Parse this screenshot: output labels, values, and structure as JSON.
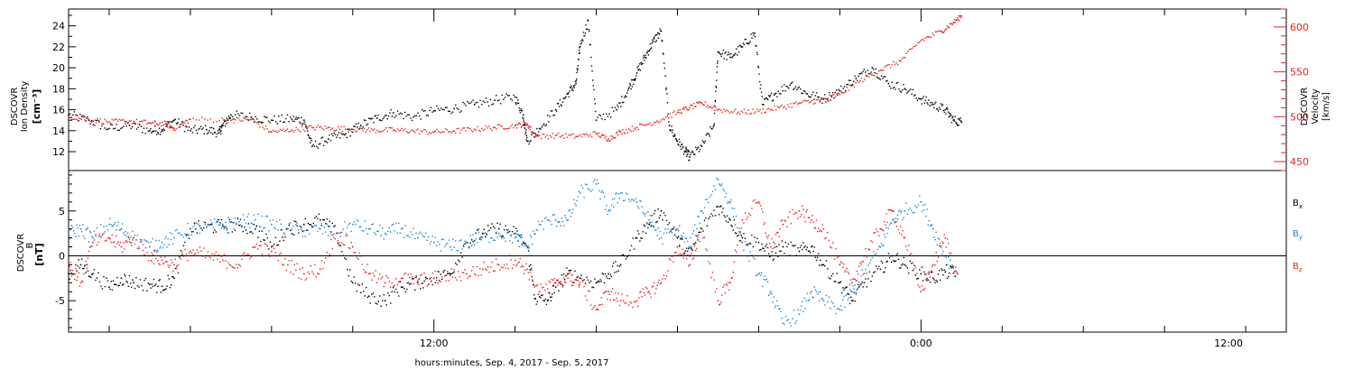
{
  "chart_data": [
    {
      "type": "scatter",
      "panel": "top",
      "ylabel_left": [
        "DSCOVR",
        "Ion Density",
        "[cm⁻³]"
      ],
      "ylabel_right": [
        "DSCOVR",
        "Velocity",
        "[km/s]"
      ],
      "xlim": [
        3.0,
        33.0
      ],
      "ylim_left": [
        10.2,
        25.6
      ],
      "ylim_right": [
        440,
        620
      ],
      "yticks_left": [
        "12",
        "14",
        "16",
        "18",
        "20",
        "22",
        "24"
      ],
      "yticks_right": [
        "450",
        "500",
        "550",
        "600"
      ],
      "grid": false,
      "series": [
        {
          "axis": "left",
          "color": "#000000",
          "x": [
            3.0,
            3.5,
            4.0,
            4.5,
            5.0,
            5.3,
            5.6,
            6.0,
            6.4,
            6.7,
            6.8,
            7.0,
            7.5,
            8.0,
            8.5,
            8.8,
            9.0,
            9.4,
            9.8,
            10.2,
            10.6,
            11.0,
            11.5,
            12.0,
            12.5,
            13.0,
            13.5,
            14.0,
            14.2,
            14.3,
            14.6,
            15.0,
            15.3,
            15.5,
            15.6,
            15.8,
            16.0,
            16.5,
            16.8,
            17.0,
            17.2,
            17.4,
            17.6,
            17.8,
            18.0,
            18.2,
            18.3,
            18.6,
            18.9,
            19.0,
            19.3,
            19.6,
            19.9,
            20.1,
            20.4,
            20.8,
            21.2,
            21.6,
            22.0,
            22.4,
            22.8,
            23.2,
            23.6,
            24.0,
            24.3,
            24.6,
            24.8,
            25.0
          ],
          "y": [
            15.5,
            15.0,
            14.2,
            14.5,
            14.0,
            14.1,
            15.0,
            14.0,
            14.1,
            13.8,
            14.5,
            15.5,
            15.3,
            15.0,
            15.1,
            15.0,
            12.5,
            13.2,
            13.6,
            14.5,
            15.2,
            15.7,
            15.3,
            15.9,
            16.1,
            16.5,
            16.9,
            17.2,
            15.5,
            13.0,
            14.2,
            16.0,
            17.5,
            18.5,
            22.0,
            24.5,
            15.0,
            16.0,
            18.0,
            19.5,
            21.0,
            22.5,
            23.5,
            14.5,
            13.0,
            12.0,
            11.5,
            12.5,
            14.5,
            21.5,
            21.0,
            22.0,
            23.3,
            16.5,
            17.5,
            18.5,
            17.5,
            17.0,
            17.8,
            19.0,
            20.0,
            18.5,
            18.0,
            17.0,
            16.5,
            16.0,
            15.0,
            14.8
          ]
        },
        {
          "axis": "right",
          "color": "#e8231f",
          "x": [
            3.0,
            3.5,
            4.0,
            4.5,
            5.0,
            5.4,
            5.6,
            6.0,
            7.0,
            7.5,
            8.0,
            8.5,
            9.0,
            9.5,
            10.0,
            10.5,
            11.0,
            11.5,
            12.0,
            12.5,
            13.0,
            13.5,
            14.0,
            14.3,
            14.5,
            15.0,
            15.5,
            16.0,
            16.3,
            16.6,
            17.0,
            17.5,
            18.0,
            18.3,
            18.6,
            19.0,
            19.5,
            20.0,
            20.5,
            21.0,
            21.5,
            22.0,
            22.5,
            23.0,
            23.5,
            24.0,
            24.5,
            24.8,
            25.0
          ],
          "y": [
            500,
            497,
            494,
            495,
            493,
            492,
            487,
            497,
            496,
            497,
            483,
            485,
            488,
            487,
            486,
            485,
            485,
            484,
            483,
            484,
            486,
            488,
            490,
            492,
            478,
            479,
            478,
            481,
            475,
            483,
            488,
            495,
            505,
            510,
            515,
            508,
            505,
            506,
            510,
            515,
            518,
            525,
            540,
            552,
            562,
            585,
            595,
            605,
            612
          ]
        }
      ]
    },
    {
      "type": "scatter",
      "panel": "bottom",
      "ylabel_left": [
        "DSCOVR",
        "B",
        "[nT]"
      ],
      "xlim": [
        3.0,
        33.0
      ],
      "ylim": [
        -8.5,
        9.5
      ],
      "yticks": [
        "-5",
        "0",
        "5"
      ],
      "zero_line": true,
      "grid": false,
      "xticks": [
        "12:00",
        "0:00",
        "12:00"
      ],
      "xlabel": "hours:minutes, Sep.  4, 2017 - Sep.  5, 2017",
      "legend": [
        "B",
        "B",
        "B"
      ],
      "legend_sub": [
        "x",
        "y",
        "z"
      ],
      "series": [
        {
          "name_index": 0,
          "color": "#000000",
          "x": [
            3.0,
            3.3,
            3.6,
            4.0,
            4.3,
            4.6,
            5.0,
            5.3,
            5.6,
            6.0,
            6.4,
            6.8,
            7.2,
            7.6,
            8.0,
            8.4,
            8.8,
            9.2,
            9.6,
            10.0,
            10.4,
            10.8,
            11.2,
            11.6,
            12.0,
            12.4,
            12.8,
            13.2,
            13.6,
            14.0,
            14.3,
            14.5,
            14.8,
            15.0,
            15.3,
            15.6,
            16.0,
            16.3,
            16.6,
            17.0,
            17.3,
            17.6,
            18.0,
            18.3,
            18.6,
            19.0,
            19.3,
            19.6,
            20.0,
            20.3,
            20.6,
            21.0,
            21.3,
            21.6,
            22.0,
            22.3,
            22.6,
            23.0,
            23.3,
            23.6,
            24.0,
            24.3,
            24.6,
            24.9
          ],
          "y": [
            -2.0,
            -1.0,
            -2.0,
            -3.5,
            -2.5,
            -3.0,
            -3.2,
            -3.4,
            -2.5,
            3.0,
            3.2,
            3.3,
            3.4,
            3.0,
            1.0,
            3.0,
            3.5,
            4.0,
            2.5,
            -3.0,
            -4.5,
            -5.0,
            -3.5,
            -3.0,
            -2.5,
            -2.0,
            1.5,
            2.5,
            3.0,
            2.5,
            1.0,
            -4.8,
            -5.0,
            -3.5,
            -2.0,
            -2.5,
            -3.0,
            -2.0,
            -1.0,
            2.0,
            3.5,
            5.0,
            2.0,
            0.0,
            3.0,
            5.5,
            4.0,
            2.0,
            1.5,
            0.0,
            1.0,
            0.5,
            1.0,
            -1.0,
            -3.0,
            -5.0,
            -3.0,
            -1.5,
            0.0,
            -1.0,
            -2.0,
            -2.5,
            -1.8,
            -2.0
          ]
        },
        {
          "name_index": 1,
          "color": "#1e88d6",
          "x": [
            3.0,
            3.3,
            3.6,
            4.0,
            4.3,
            4.6,
            5.0,
            5.3,
            5.6,
            6.0,
            6.4,
            6.8,
            7.2,
            7.6,
            8.0,
            8.4,
            8.8,
            9.2,
            9.6,
            10.0,
            10.4,
            10.8,
            11.2,
            11.6,
            12.0,
            12.4,
            12.8,
            13.2,
            13.6,
            14.0,
            14.3,
            14.6,
            15.0,
            15.3,
            15.6,
            16.0,
            16.3,
            16.6,
            17.0,
            17.3,
            17.6,
            18.0,
            18.3,
            18.6,
            19.0,
            19.3,
            19.6,
            20.0,
            20.3,
            20.6,
            21.0,
            21.3,
            21.6,
            22.0,
            22.3,
            22.6,
            23.0,
            23.3,
            23.6,
            24.0,
            24.3,
            24.6,
            24.9
          ],
          "y": [
            2.5,
            3.0,
            2.0,
            3.5,
            3.0,
            2.0,
            1.0,
            1.5,
            2.0,
            3.0,
            3.2,
            3.5,
            3.8,
            4.0,
            3.5,
            3.0,
            2.8,
            3.0,
            2.5,
            3.5,
            3.0,
            2.5,
            3.0,
            2.0,
            1.5,
            1.0,
            1.5,
            2.0,
            2.5,
            2.0,
            1.0,
            3.5,
            4.0,
            4.0,
            7.0,
            8.0,
            5.0,
            7.0,
            6.0,
            4.0,
            2.0,
            3.0,
            1.0,
            5.0,
            8.5,
            6.0,
            1.5,
            -2.0,
            -4.0,
            -7.5,
            -6.5,
            -4.0,
            -5.0,
            -6.0,
            -4.0,
            -2.0,
            1.0,
            4.0,
            5.0,
            6.0,
            3.0,
            0.0,
            -2.0
          ]
        },
        {
          "name_index": 2,
          "color": "#e8231f",
          "x": [
            3.0,
            3.3,
            3.6,
            4.0,
            4.3,
            4.6,
            5.0,
            5.3,
            5.6,
            6.0,
            6.4,
            6.8,
            7.2,
            7.6,
            8.0,
            8.4,
            8.8,
            9.2,
            9.6,
            10.0,
            10.4,
            10.8,
            11.2,
            11.6,
            12.0,
            12.4,
            12.8,
            13.2,
            13.6,
            14.0,
            14.3,
            14.6,
            15.0,
            15.3,
            15.6,
            16.0,
            16.3,
            16.6,
            17.0,
            17.3,
            17.6,
            18.0,
            18.3,
            18.6,
            19.0,
            19.3,
            19.6,
            20.0,
            20.3,
            20.6,
            21.0,
            21.3,
            21.6,
            22.0,
            22.3,
            22.6,
            23.0,
            23.3,
            23.6,
            24.0,
            24.3,
            24.6,
            24.9
          ],
          "y": [
            -1.0,
            -3.0,
            1.5,
            2.0,
            1.0,
            2.0,
            0.0,
            -0.5,
            -1.0,
            0.5,
            0.0,
            -0.5,
            -1.0,
            1.0,
            0.5,
            -1.0,
            -2.0,
            -1.5,
            2.5,
            1.0,
            -2.0,
            -3.0,
            -2.5,
            -2.8,
            -2.5,
            -2.2,
            -2.0,
            -1.5,
            -1.0,
            -0.5,
            -1.5,
            -4.0,
            -3.0,
            -2.5,
            -3.0,
            -6.0,
            -4.0,
            -5.0,
            -5.0,
            -4.0,
            -3.0,
            1.0,
            -1.0,
            3.0,
            -5.0,
            -3.0,
            4.0,
            6.0,
            1.0,
            3.5,
            5.0,
            4.0,
            3.0,
            -1.0,
            -3.0,
            0.0,
            3.0,
            5.0,
            2.0,
            -4.0,
            -1.0,
            2.0,
            -2.0
          ]
        }
      ]
    }
  ]
}
